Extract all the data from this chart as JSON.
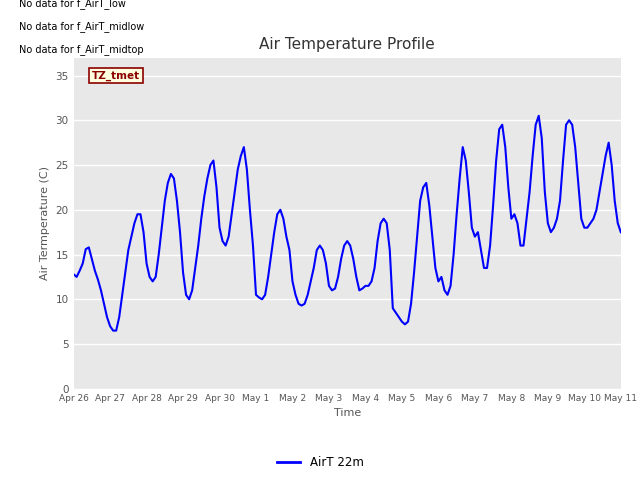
{
  "title": "Air Temperature Profile",
  "xlabel": "Time",
  "ylabel": "Air Termperature (C)",
  "ylim": [
    0,
    37
  ],
  "yticks": [
    0,
    5,
    10,
    15,
    20,
    25,
    30,
    35
  ],
  "plot_bg_color": "#e8e8e8",
  "fig_bg_color": "#ffffff",
  "line_color": "#0000ff",
  "line_width": 1.5,
  "legend_label": "AirT 22m",
  "annotations": [
    "No data for f_AirT_low",
    "No data for f_AirT_midlow",
    "No data for f_AirT_midtop"
  ],
  "tz_label": "TZ_tmet",
  "x_tick_labels": [
    "Apr 26",
    "Apr 27",
    "Apr 28",
    "Apr 29",
    "Apr 30",
    "May 1",
    "May 2",
    "May 3",
    "May 4",
    "May 5",
    "May 6",
    "May 7",
    "May 8",
    "May 9",
    "May 10",
    "May 11"
  ],
  "time_data": [
    0.0,
    0.083,
    0.167,
    0.25,
    0.333,
    0.417,
    0.5,
    0.583,
    0.667,
    0.75,
    0.833,
    0.917,
    1.0,
    1.083,
    1.167,
    1.25,
    1.333,
    1.417,
    1.5,
    1.583,
    1.667,
    1.75,
    1.833,
    1.917,
    2.0,
    2.083,
    2.167,
    2.25,
    2.333,
    2.417,
    2.5,
    2.583,
    2.667,
    2.75,
    2.833,
    2.917,
    3.0,
    3.083,
    3.167,
    3.25,
    3.333,
    3.417,
    3.5,
    3.583,
    3.667,
    3.75,
    3.833,
    3.917,
    4.0,
    4.083,
    4.167,
    4.25,
    4.333,
    4.417,
    4.5,
    4.583,
    4.667,
    4.75,
    4.833,
    4.917,
    5.0,
    5.083,
    5.167,
    5.25,
    5.333,
    5.417,
    5.5,
    5.583,
    5.667,
    5.75,
    5.833,
    5.917,
    6.0,
    6.083,
    6.167,
    6.25,
    6.333,
    6.417,
    6.5,
    6.583,
    6.667,
    6.75,
    6.833,
    6.917,
    7.0,
    7.083,
    7.167,
    7.25,
    7.333,
    7.417,
    7.5,
    7.583,
    7.667,
    7.75,
    7.833,
    7.917,
    8.0,
    8.083,
    8.167,
    8.25,
    8.333,
    8.417,
    8.5,
    8.583,
    8.667,
    8.75,
    8.833,
    8.917,
    9.0,
    9.083,
    9.167,
    9.25,
    9.333,
    9.417,
    9.5,
    9.583,
    9.667,
    9.75,
    9.833,
    9.917,
    10.0,
    10.083,
    10.167,
    10.25,
    10.333,
    10.417,
    10.5,
    10.583,
    10.667,
    10.75,
    10.833,
    10.917,
    11.0,
    11.083,
    11.167,
    11.25,
    11.333,
    11.417,
    11.5,
    11.583,
    11.667,
    11.75,
    11.833,
    11.917,
    12.0,
    12.083,
    12.167,
    12.25,
    12.333,
    12.417,
    12.5,
    12.583,
    12.667,
    12.75,
    12.833,
    12.917,
    13.0,
    13.083,
    13.167,
    13.25,
    13.333,
    13.417,
    13.5,
    13.583,
    13.667,
    13.75,
    13.833,
    13.917,
    14.0,
    14.083,
    14.167,
    14.25,
    14.333,
    14.417,
    14.5,
    14.583,
    14.667,
    14.75,
    14.833,
    14.917,
    15.0
  ],
  "temp_data": [
    12.8,
    12.5,
    13.2,
    14.0,
    15.6,
    15.8,
    14.5,
    13.2,
    12.2,
    11.0,
    9.5,
    8.0,
    7.0,
    6.5,
    6.5,
    8.0,
    10.5,
    13.0,
    15.5,
    17.0,
    18.5,
    19.5,
    19.5,
    17.5,
    14.0,
    12.5,
    12.0,
    12.5,
    15.0,
    18.0,
    21.0,
    23.0,
    24.0,
    23.5,
    21.0,
    17.5,
    13.0,
    10.5,
    10.0,
    11.0,
    13.5,
    16.0,
    19.0,
    21.5,
    23.5,
    25.0,
    25.5,
    22.5,
    18.0,
    16.5,
    16.0,
    17.0,
    19.5,
    22.0,
    24.5,
    26.0,
    27.0,
    24.5,
    20.0,
    16.0,
    10.5,
    10.2,
    10.0,
    10.5,
    12.5,
    15.0,
    17.5,
    19.5,
    20.0,
    19.0,
    17.0,
    15.5,
    12.0,
    10.5,
    9.5,
    9.3,
    9.5,
    10.5,
    12.0,
    13.5,
    15.5,
    16.0,
    15.5,
    14.0,
    11.5,
    11.0,
    11.2,
    12.5,
    14.5,
    16.0,
    16.5,
    16.0,
    14.5,
    12.5,
    11.0,
    11.2,
    11.5,
    11.5,
    12.0,
    13.5,
    16.5,
    18.5,
    19.0,
    18.5,
    15.5,
    9.0,
    8.5,
    8.0,
    7.5,
    7.2,
    7.5,
    9.5,
    13.0,
    17.0,
    21.0,
    22.5,
    23.0,
    20.5,
    17.0,
    13.5,
    12.0,
    12.5,
    11.0,
    10.5,
    11.5,
    15.0,
    19.5,
    23.5,
    27.0,
    25.5,
    22.0,
    18.0,
    17.0,
    17.5,
    15.5,
    13.5,
    13.5,
    16.0,
    20.5,
    25.5,
    29.0,
    29.5,
    27.0,
    22.5,
    19.0,
    19.5,
    18.5,
    16.0,
    16.0,
    19.0,
    22.0,
    26.0,
    29.5,
    30.5,
    28.0,
    22.0,
    18.5,
    17.5,
    18.0,
    19.0,
    21.0,
    25.5,
    29.5,
    30.0,
    29.5,
    27.0,
    23.0,
    19.0,
    18.0,
    18.0,
    18.5,
    19.0,
    20.0,
    22.0,
    24.0,
    26.0,
    27.5,
    25.0,
    21.0,
    18.5,
    17.5
  ]
}
